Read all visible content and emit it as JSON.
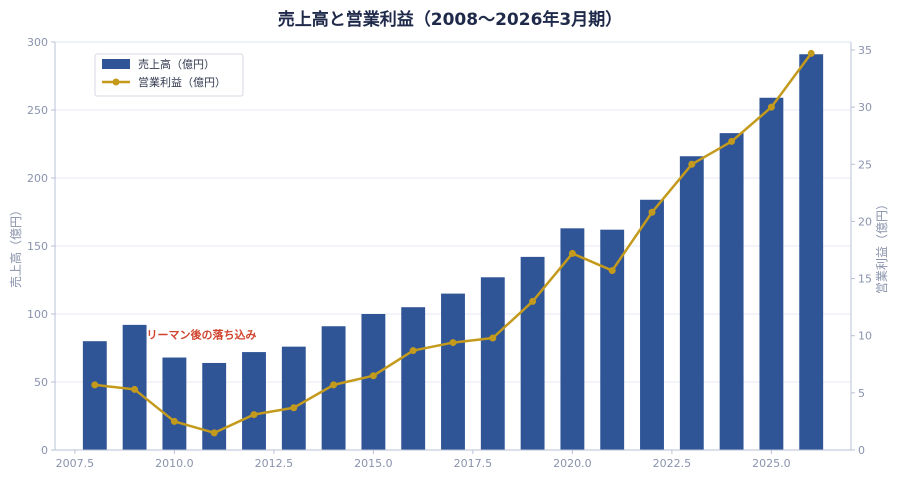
{
  "chart_data": {
    "type": "bar",
    "title": "売上高と営業利益（2008〜2026年3月期）",
    "xlabel": "",
    "ylabel": "売上高（億円）",
    "y2label": "営業利益（億円）",
    "xlim": [
      2007.0,
      2027.0
    ],
    "ylim": [
      0,
      300
    ],
    "y2lim": [
      0,
      35.7
    ],
    "x_ticks": [
      "2007.5",
      "2010.0",
      "2012.5",
      "2015.0",
      "2017.5",
      "2020.0",
      "2022.5",
      "2025.0"
    ],
    "x_tick_values": [
      2007.5,
      2010.0,
      2012.5,
      2015.0,
      2017.5,
      2020.0,
      2022.5,
      2025.0
    ],
    "y_ticks": [
      0,
      50,
      100,
      150,
      200,
      250,
      300
    ],
    "y2_ticks": [
      0,
      5,
      10,
      15,
      20,
      25,
      30,
      35
    ],
    "x": [
      2008,
      2009,
      2010,
      2011,
      2012,
      2013,
      2014,
      2015,
      2016,
      2017,
      2018,
      2019,
      2020,
      2021,
      2022,
      2023,
      2024,
      2025,
      2026
    ],
    "series": [
      {
        "name": "売上高（億円）",
        "type": "bar",
        "axis": "left",
        "color": "#2f5597",
        "values": [
          80,
          92,
          68,
          64,
          72,
          76,
          91,
          100,
          105,
          115,
          127,
          142,
          163,
          162,
          184,
          216,
          233,
          259,
          291
        ]
      },
      {
        "name": "営業利益（億円）",
        "type": "line",
        "axis": "right",
        "color": "#c49a1c",
        "values": [
          5.7,
          5.3,
          2.5,
          1.5,
          3.1,
          3.7,
          5.7,
          6.5,
          8.7,
          9.4,
          9.8,
          13.0,
          17.2,
          15.7,
          20.8,
          25.0,
          27.0,
          30.0,
          34.7
        ]
      }
    ],
    "annotations": [
      {
        "text": "リーマン後の落ち込み",
        "x": 2009.3,
        "y": 82
      }
    ],
    "legend": {
      "position": "top-left"
    },
    "grid": {
      "y": true,
      "x": false
    },
    "colors": {
      "axis": "#b8c0d6",
      "grid": "#e6eaf2",
      "annotation": "#d0442e"
    }
  }
}
